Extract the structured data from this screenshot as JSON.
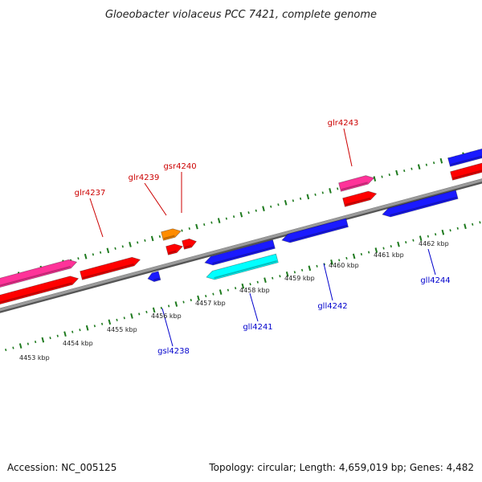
{
  "title": "Gloeobacter violaceus PCC 7421, complete genome",
  "footer": {
    "accession": "Accession: NC_005125",
    "topology": "Topology: circular; Length: 4,659,019 bp; Genes: 4,482"
  },
  "colors": {
    "background": "#ffffff",
    "backbone": "#8a8a8a",
    "tick": "#1e7a1e",
    "forward_label": "#cc0000",
    "reverse_label": "#0000cc",
    "gene_red": "#ff0000",
    "gene_pink": "#ff3399",
    "gene_orange": "#ff8c00",
    "gene_blue": "#1a1aff",
    "gene_cyan": "#00ffff"
  },
  "kbp_labels": [
    "4453 kbp",
    "4454 kbp",
    "4455 kbp",
    "4456 kbp",
    "4457 kbp",
    "4458 kbp",
    "4459 kbp",
    "4460 kbp",
    "4461 kbp",
    "4462 kbp"
  ],
  "gene_labels": [
    {
      "name": "glr4237",
      "strand": "forward"
    },
    {
      "name": "glr4239",
      "strand": "forward"
    },
    {
      "name": "gsr4240",
      "strand": "forward"
    },
    {
      "name": "glr4243",
      "strand": "forward"
    },
    {
      "name": "gsl4238",
      "strand": "reverse"
    },
    {
      "name": "gll4241",
      "strand": "reverse"
    },
    {
      "name": "gll4242",
      "strand": "reverse"
    },
    {
      "name": "gll4244",
      "strand": "reverse"
    }
  ]
}
